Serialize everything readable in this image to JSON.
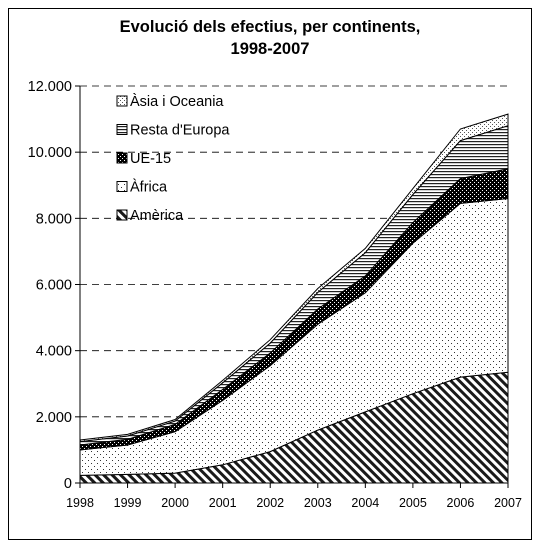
{
  "chart_data": {
    "type": "area",
    "stacked": true,
    "title_line1": "Evolució dels efectius, per continents,",
    "title_line2": "1998-2007",
    "xlabel": "",
    "ylabel": "",
    "x": [
      "1998",
      "1999",
      "2000",
      "2001",
      "2002",
      "2003",
      "2004",
      "2005",
      "2006",
      "2007"
    ],
    "ylim": [
      0,
      12000
    ],
    "yticks": [
      0,
      2000,
      4000,
      6000,
      8000,
      10000,
      12000
    ],
    "ytick_labels": [
      "0",
      "2.000",
      "4.000",
      "6.000",
      "8.000",
      "10.000",
      "12.000"
    ],
    "grid": "horizontal dashed",
    "legend_position": "top-left",
    "series": [
      {
        "name": "Amèrica",
        "pattern": "diagonal-hatch",
        "values": [
          230,
          260,
          300,
          550,
          950,
          1600,
          2150,
          2700,
          3200,
          3350
        ]
      },
      {
        "name": "Àfrica",
        "pattern": "sparse-dots",
        "values": [
          770,
          890,
          1250,
          1950,
          2600,
          3200,
          3600,
          4550,
          5250,
          5250
        ]
      },
      {
        "name": "UE-15",
        "pattern": "dense-dots",
        "values": [
          150,
          170,
          220,
          330,
          380,
          460,
          510,
          620,
          750,
          900
        ]
      },
      {
        "name": "Resta d'Europa",
        "pattern": "horizontal-lines",
        "values": [
          100,
          100,
          100,
          200,
          300,
          500,
          700,
          850,
          1150,
          1300
        ]
      },
      {
        "name": "Àsia i Oceania",
        "pattern": "fine-dots",
        "values": [
          50,
          50,
          50,
          70,
          100,
          120,
          130,
          180,
          350,
          350
        ]
      }
    ],
    "legend_order": [
      "Àsia i Oceania",
      "Resta d'Europa",
      "UE-15",
      "Àfrica",
      "Amèrica"
    ]
  }
}
